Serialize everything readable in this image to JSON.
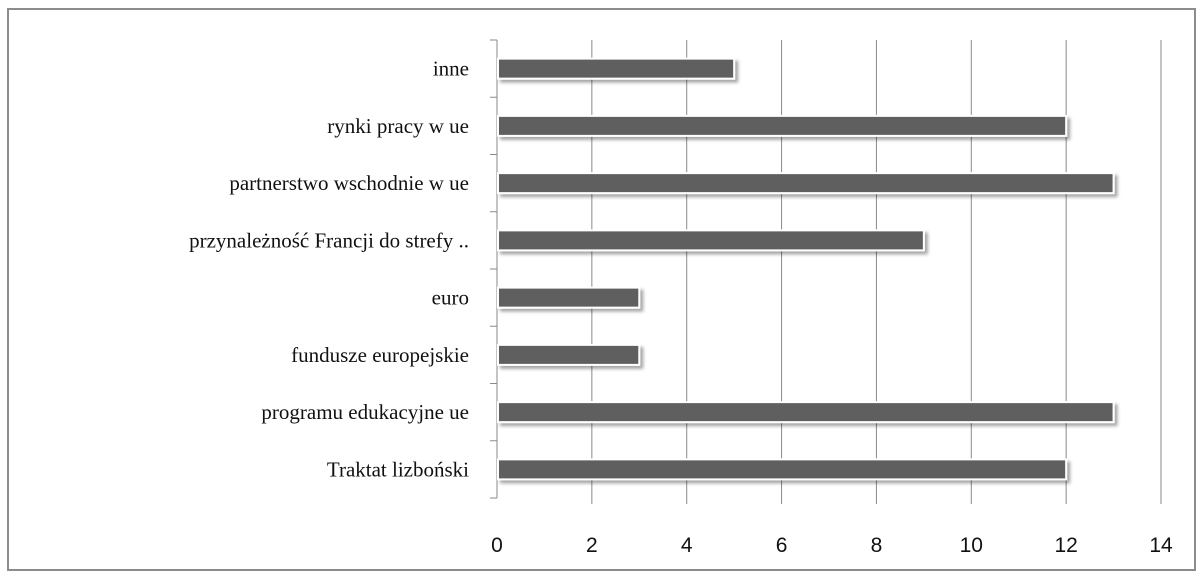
{
  "chart_data": {
    "type": "bar",
    "orientation": "horizontal",
    "title": "",
    "xlabel": "",
    "ylabel": "",
    "categories": [
      "Traktat lizboński",
      "programu edukacyjne ue",
      "fundusze europejskie",
      "euro",
      "przynależność Francji do strefy ..",
      "partnerstwo wschodnie w ue",
      "rynki pracy w ue",
      "inne"
    ],
    "values": [
      12,
      13,
      3,
      3,
      9,
      13,
      12,
      5
    ],
    "xlim": [
      0,
      14
    ],
    "xticks": [
      "0",
      "2",
      "4",
      "6",
      "8",
      "10",
      "12",
      "14"
    ],
    "grid": "vertical",
    "legend": "none",
    "bar_color": "#5e5e5e",
    "grid_color": "#8a8a8a"
  }
}
